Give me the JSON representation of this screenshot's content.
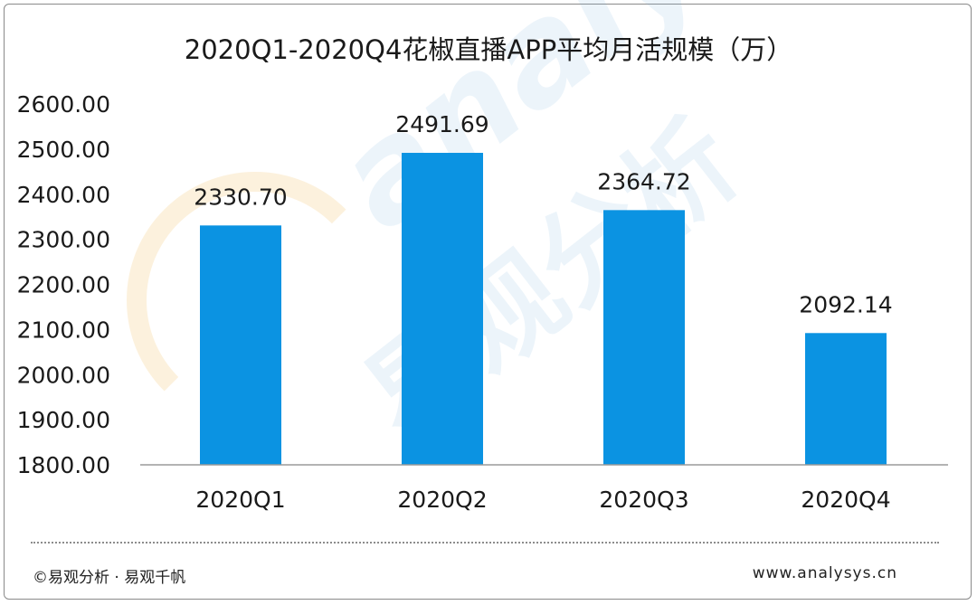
{
  "chart_data": {
    "type": "bar",
    "title": "2020Q1-2020Q4花椒直播APP平均月活规模（万）",
    "categories": [
      "2020Q1",
      "2020Q2",
      "2020Q3",
      "2020Q4"
    ],
    "values": [
      2330.7,
      2491.69,
      2364.72,
      2092.14
    ],
    "value_labels": [
      "2330.70",
      "2491.69",
      "2364.72",
      "2092.14"
    ],
    "ylim": [
      1800,
      2600
    ],
    "yticks": [
      "2600.00",
      "2500.00",
      "2400.00",
      "2300.00",
      "2200.00",
      "2100.00",
      "2000.00",
      "1900.00",
      "1800.00"
    ],
    "ytick_values": [
      2600,
      2500,
      2400,
      2300,
      2200,
      2100,
      2000,
      1900,
      1800
    ],
    "xlabel": "",
    "ylabel": "",
    "grid": false,
    "legend": "none",
    "bar_color": "#0b93e2"
  },
  "footer": {
    "copyright": "©易观分析 · 易观千帆",
    "website": "www.analysys.cn"
  },
  "watermark": {
    "text_en": "analysys",
    "text_cn": "易观分析"
  }
}
